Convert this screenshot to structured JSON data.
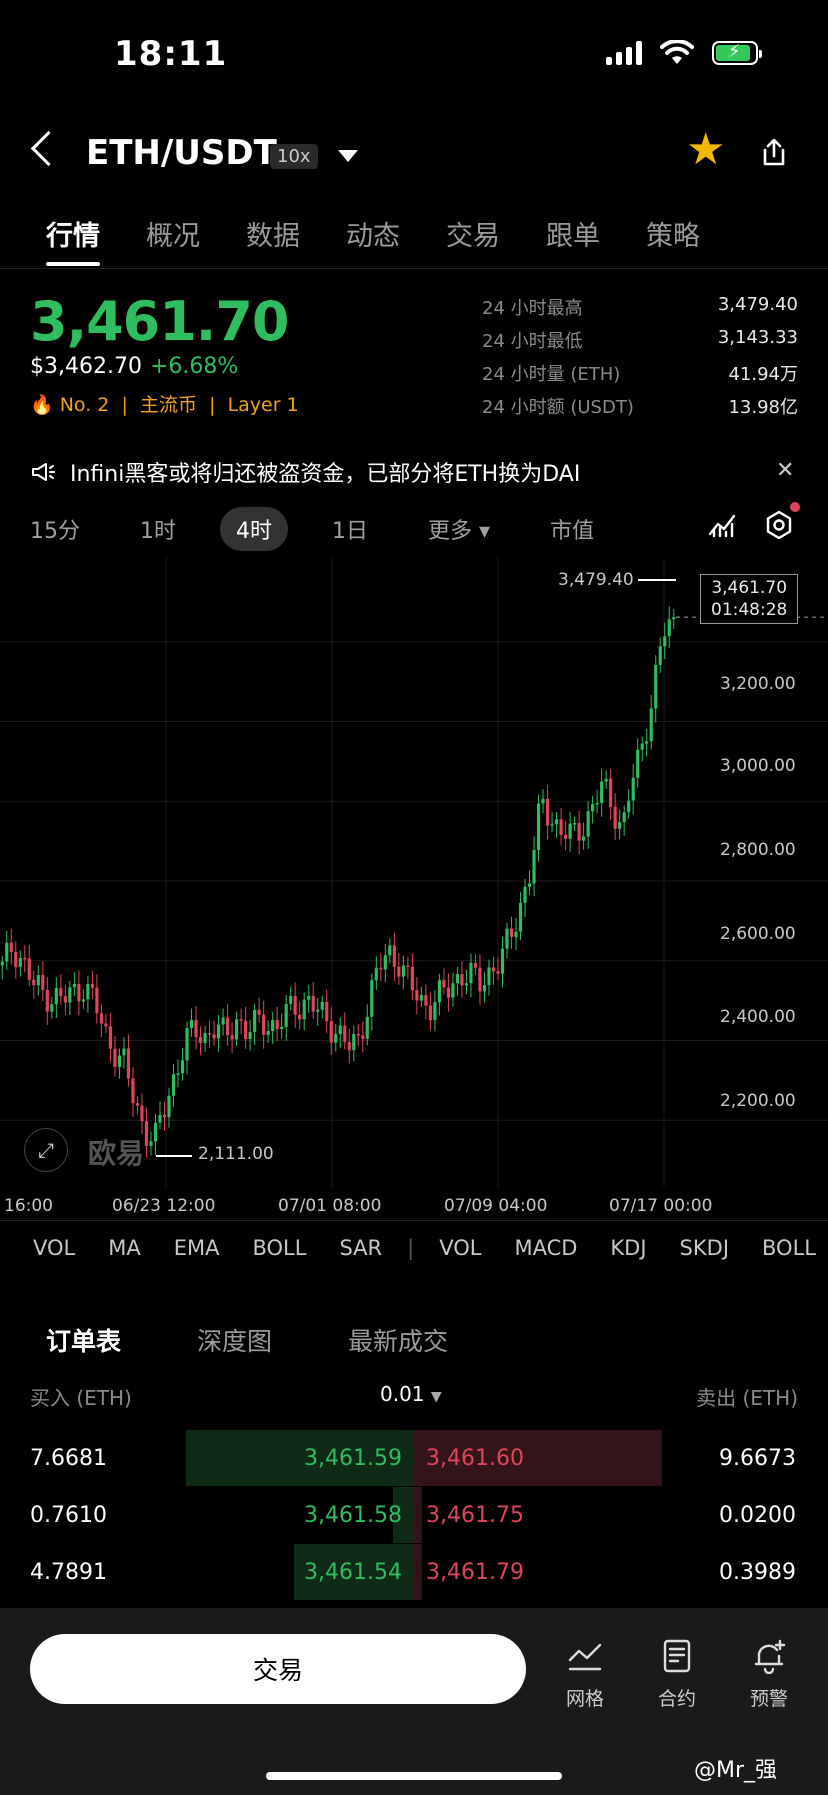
{
  "status_bar": {
    "time": "18:11"
  },
  "header": {
    "pair": "ETH/USDT",
    "leverage": "10x"
  },
  "tabs": [
    "行情",
    "概况",
    "数据",
    "动态",
    "交易",
    "跟单",
    "策略"
  ],
  "price": {
    "last": "3,461.70",
    "usd": "$3,462.70",
    "change": "+6.68%",
    "rank": "No. 2",
    "tag1": "主流币",
    "tag2": "Layer 1"
  },
  "stats": [
    {
      "label": "24 小时最高",
      "value": "3,479.40"
    },
    {
      "label": "24 小时最低",
      "value": "3,143.33"
    },
    {
      "label": "24 小时量 (ETH)",
      "value": "41.94万"
    },
    {
      "label": "24 小时额 (USDT)",
      "value": "13.98亿"
    }
  ],
  "notice": {
    "text": "Infini黑客或将归还被盗资金，已部分将ETH换为DAI"
  },
  "intervals": [
    "15分",
    "1时",
    "4时",
    "1日",
    "更多",
    "市值"
  ],
  "chart_data": {
    "type": "candlestick",
    "y_ticks": [
      "3,200.00",
      "3,000.00",
      "2,800.00",
      "2,600.00",
      "2,400.00",
      "2,200.00"
    ],
    "x_ticks": [
      "16:00",
      "06/23 12:00",
      "07/01 08:00",
      "07/09 04:00",
      "07/17 00:00"
    ],
    "high_marker": "3,479.40",
    "low_marker": "2,111.00",
    "last_price": "3,461.70",
    "countdown": "01:48:28",
    "watermark": "欧易",
    "ylim": [
      2050,
      3530
    ],
    "closes": [
      2580,
      2640,
      2600,
      2540,
      2520,
      2510,
      2500,
      2520,
      2540,
      2500,
      2420,
      2380,
      2340,
      2240,
      2180,
      2150,
      2230,
      2320,
      2400,
      2420,
      2410,
      2440,
      2400,
      2460,
      2420,
      2440,
      2450,
      2430,
      2470,
      2490,
      2500,
      2470,
      2450,
      2420,
      2380,
      2400,
      2500,
      2580,
      2620,
      2600,
      2540,
      2500,
      2490,
      2510,
      2530,
      2570,
      2560,
      2540,
      2580,
      2600,
      2660,
      2750,
      2830,
      3000,
      2960,
      2920,
      2910,
      2940,
      2980,
      3040,
      2990,
      2930,
      3060,
      3150,
      3280,
      3420,
      3462
    ]
  },
  "indicators": [
    "VOL",
    "MA",
    "EMA",
    "BOLL",
    "SAR",
    "|",
    "VOL",
    "MACD",
    "KDJ",
    "SKDJ",
    "BOLL"
  ],
  "orderbook": {
    "tabs": [
      "订单表",
      "深度图",
      "最新成交"
    ],
    "bid_header": "买入 (ETH)",
    "step": "0.01",
    "ask_header": "卖出 (ETH)",
    "rows": [
      {
        "bid_qty": "7.6681",
        "bid": "3,461.59",
        "ask": "3,461.60",
        "ask_qty": "9.6673",
        "bid_depth": 0.55,
        "ask_depth": 0.6
      },
      {
        "bid_qty": "0.7610",
        "bid": "3,461.58",
        "ask": "3,461.75",
        "ask_qty": "0.0200",
        "bid_depth": 0.05,
        "ask_depth": 0.02
      },
      {
        "bid_qty": "4.7891",
        "bid": "3,461.54",
        "ask": "3,461.79",
        "ask_qty": "0.3989",
        "bid_depth": 0.29,
        "ask_depth": 0.02
      }
    ]
  },
  "bottom_bar": {
    "trade": "交易",
    "items": [
      "网格",
      "合约",
      "预警"
    ]
  },
  "watermark": "@Mr_强"
}
